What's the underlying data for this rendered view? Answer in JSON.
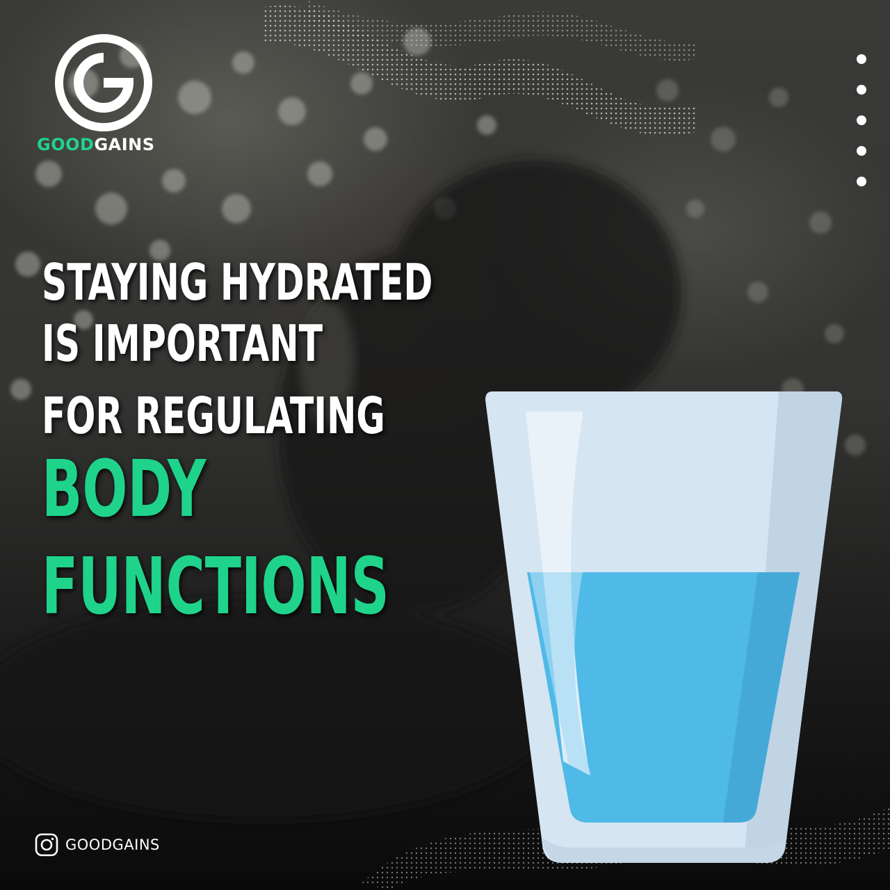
{
  "brand": {
    "name_part1": "GOOD",
    "name_part2": "GAINS",
    "logo_letter": "G",
    "primary_color": "#1fd38b",
    "text_color": "#ffffff"
  },
  "headline": {
    "line1": "STAYING HYDRATED",
    "line2": "IS IMPORTANT",
    "line3": "FOR REGULATING",
    "line4": "BODY",
    "line5": "FUNCTIONS"
  },
  "pager": {
    "dot_count": 5
  },
  "social": {
    "icon": "instagram-icon",
    "handle": "GOODGAINS"
  },
  "illustration": {
    "icon": "water-glass-icon",
    "water_color": "#4fb9e7",
    "glass_color": "#d6e5f2"
  }
}
